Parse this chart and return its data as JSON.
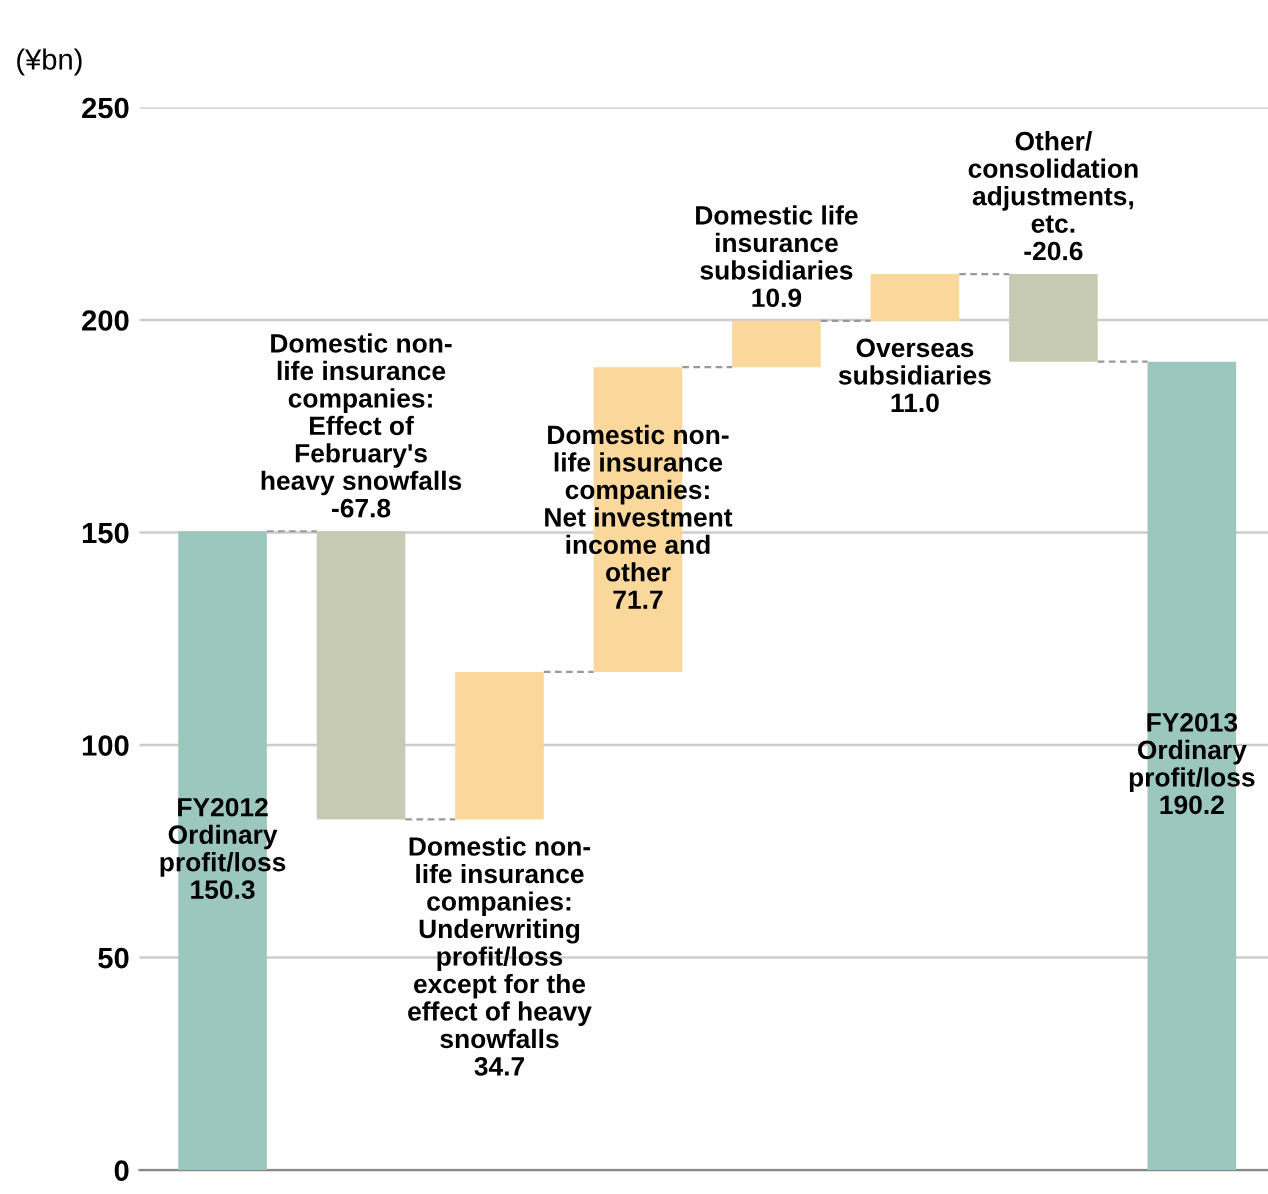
{
  "chart_data": {
    "type": "bar",
    "ylabel": "(¥bn)",
    "categories": [
      null,
      null,
      null,
      null,
      null,
      null,
      null,
      null
    ],
    "values": [
      150.3,
      -67.8,
      34.7,
      71.7,
      10.9,
      11.0,
      -20.6,
      190.2
    ],
    "base": [
      0,
      150.3,
      82.5,
      117.2,
      188.9,
      199.8,
      210.8,
      0
    ],
    "colors": [
      "#9cc7bf",
      "#c6cab3",
      "#fad79b",
      "#fad79b",
      "#fad79b",
      "#fad79b",
      "#c6cab3",
      "#9cc7bf"
    ],
    "value_labels": [
      "FY2012\nOrdinary\nprofit/loss\n150.3",
      "Domestic non-\nlife insurance\ncompanies:\nEffect of\nFebruary's\nheavy snowfalls\n-67.8",
      "Domestic non-\nlife insurance\ncompanies:\nUnderwriting\nprofit/loss\nexcept for the\neffect of heavy\nsnowfalls\n34.7",
      "Domestic non-\nlife insurance\ncompanies:\nNet investment\nincome and\nother\n71.7",
      "Domestic life\ninsurance\nsubsidiaries\n10.9",
      "Overseas\nsubsidiaries\n11.0",
      "Other/\nconsolidation\nadjustments,\netc.\n-20.6",
      "FY2013\nOrdinary\nprofit/loss\n190.2"
    ],
    "ylim": [
      0,
      250
    ],
    "yticks": [
      0,
      50,
      100,
      150,
      200,
      250
    ],
    "grid": "y"
  }
}
